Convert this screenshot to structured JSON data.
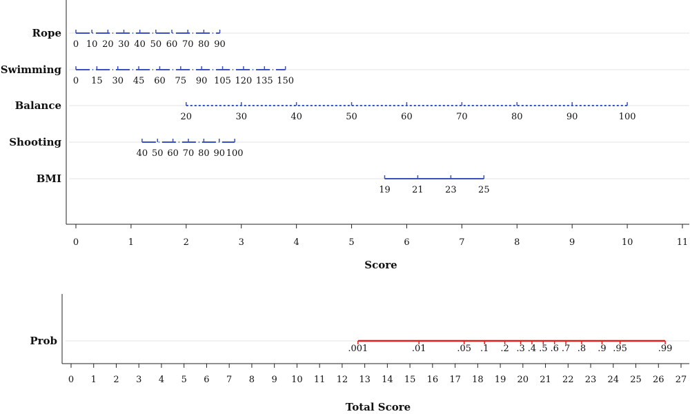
{
  "colors": {
    "scale": "#3a4fc2",
    "prob": "#e0201f",
    "axis": "#222222",
    "grid": "#e3e3e3"
  },
  "chart_data": [
    {
      "type": "nomogram",
      "xlabel": "Score",
      "axis_ticks": [
        0,
        1,
        2,
        3,
        4,
        5,
        6,
        7,
        8,
        9,
        10,
        11
      ],
      "xlim": [
        0,
        11
      ],
      "grid": true,
      "scales": [
        {
          "name": "Rope",
          "style": "dashed",
          "labels": [
            "0",
            "10",
            "20",
            "30",
            "40",
            "50",
            "60",
            "70",
            "80",
            "90"
          ],
          "points": [
            0,
            0.29,
            0.58,
            0.87,
            1.16,
            1.45,
            1.74,
            2.03,
            2.32,
            2.61
          ]
        },
        {
          "name": "Swimming",
          "style": "dashed",
          "labels": [
            "0",
            "15",
            "30",
            "45",
            "60",
            "75",
            "90",
            "105",
            "120",
            "135",
            "150"
          ],
          "points": [
            0,
            0.38,
            0.76,
            1.14,
            1.52,
            1.9,
            2.28,
            2.66,
            3.04,
            3.42,
            3.8
          ]
        },
        {
          "name": "Balance",
          "style": "dotted",
          "labels": [
            "20",
            "30",
            "40",
            "50",
            "60",
            "70",
            "80",
            "90",
            "100"
          ],
          "points": [
            2,
            3,
            4,
            5,
            6,
            7,
            8,
            9,
            10
          ]
        },
        {
          "name": "Shooting",
          "style": "dashed",
          "labels": [
            "40",
            "50",
            "60",
            "70",
            "80",
            "90",
            "100"
          ],
          "points": [
            1.2,
            1.48,
            1.76,
            2.04,
            2.32,
            2.6,
            2.88
          ]
        },
        {
          "name": "BMI",
          "style": "solid",
          "labels": [
            "19",
            "21",
            "23",
            "25"
          ],
          "points": [
            5.6,
            6.2,
            6.8,
            7.4
          ]
        }
      ]
    },
    {
      "type": "nomogram",
      "xlabel": "Total Score",
      "axis_ticks": [
        0,
        1,
        2,
        3,
        4,
        5,
        6,
        7,
        8,
        9,
        10,
        11,
        12,
        13,
        14,
        15,
        16,
        17,
        18,
        19,
        20,
        21,
        22,
        23,
        24,
        25,
        26,
        27
      ],
      "xlim": [
        0,
        27
      ],
      "grid": true,
      "scales": [
        {
          "name": "Prob",
          "style": "solid",
          "labels": [
            ".001",
            ".01",
            ".05",
            ".1",
            ".2",
            ".3",
            ".4",
            ".5",
            ".6",
            ".7",
            ".8",
            ".9",
            ".95",
            ".99"
          ],
          "points": [
            12.7,
            15.4,
            17.4,
            18.3,
            19.2,
            19.9,
            20.4,
            20.9,
            21.4,
            21.9,
            22.6,
            23.5,
            24.3,
            26.3
          ]
        }
      ]
    }
  ]
}
